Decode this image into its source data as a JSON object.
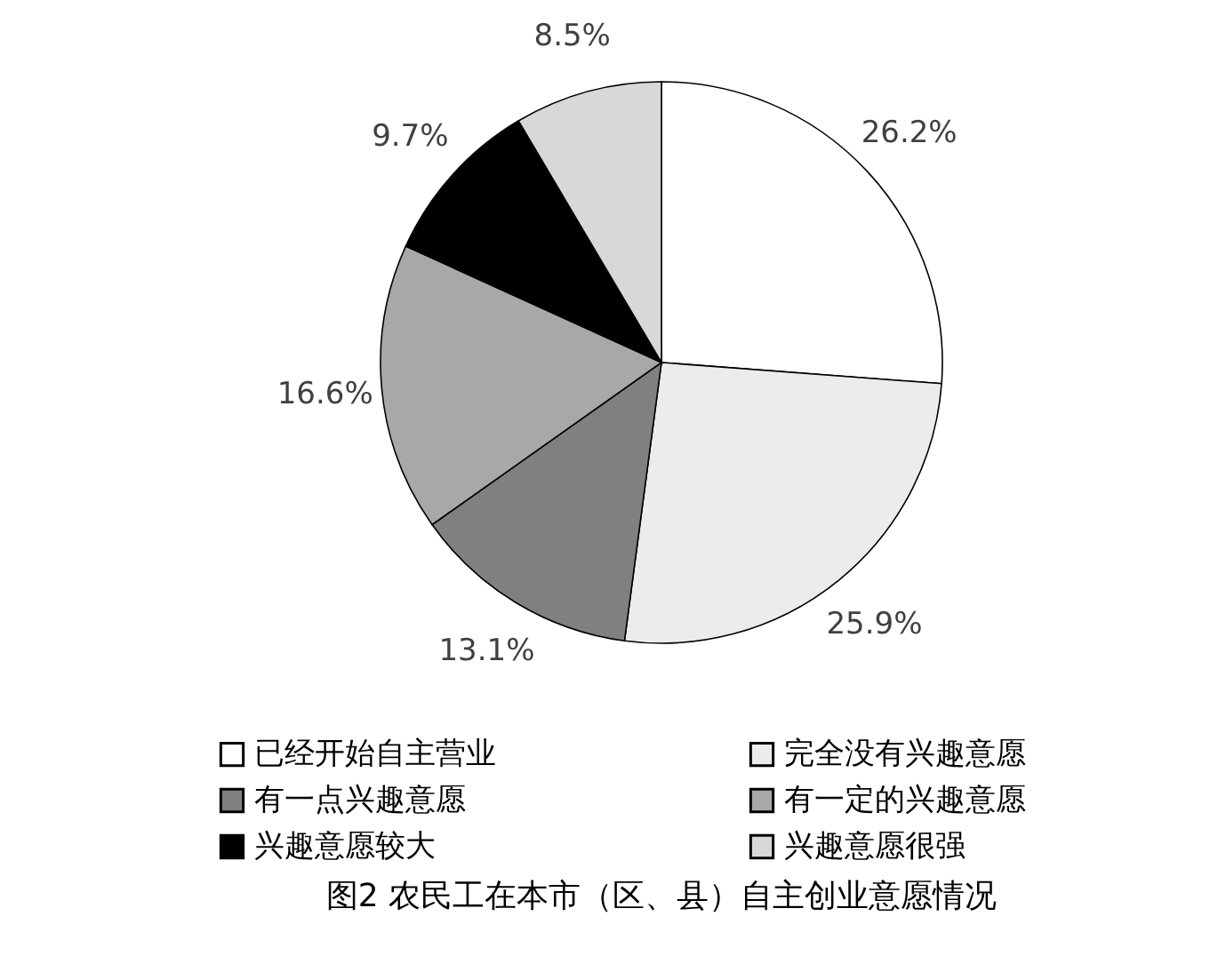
{
  "chart_data": {
    "type": "pie",
    "title": "图2  农民工在本市（区、县）自主创业意愿情况",
    "categories": [
      "已经开始自主营业",
      "完全没有兴趣意愿",
      "有一点兴趣意愿",
      "有一定的兴趣意愿",
      "兴趣意愿较大",
      "兴趣意愿很强"
    ],
    "values": [
      26.2,
      25.9,
      13.1,
      16.6,
      9.7,
      8.5
    ],
    "colors": [
      "#ffffff",
      "#ececec",
      "#808080",
      "#a8a8a8",
      "#000000",
      "#d8d8d8"
    ],
    "value_labels": [
      "26.2%",
      "25.9%",
      "13.1%",
      "16.6%",
      "9.7%",
      "8.5%"
    ],
    "legend": "bottom"
  }
}
